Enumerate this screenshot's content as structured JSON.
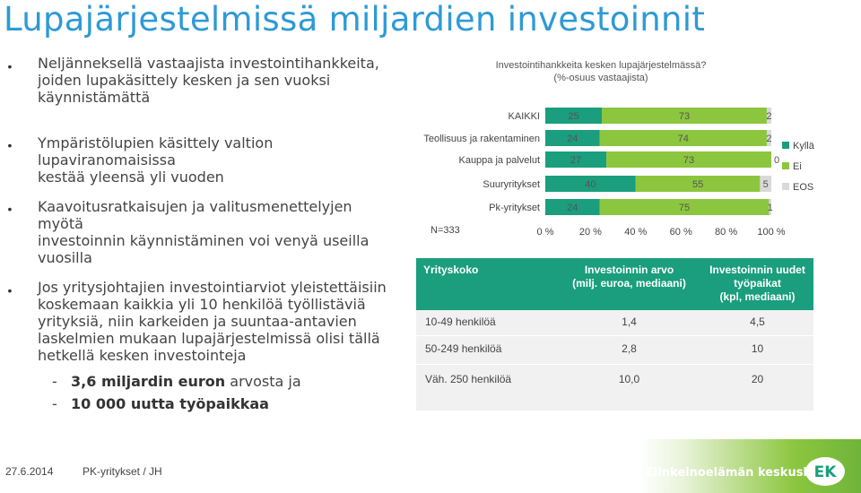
{
  "title": "Lupajärjestelmissä miljardien investoinnit",
  "bullets": [
    {
      "lines": [
        "Neljänneksellä vastaajista investointihankkeita,",
        "joiden lupakäsittely kesken ja sen vuoksi",
        "käynnistämättä"
      ]
    },
    {
      "lines": [
        "Ympäristölupien käsittely valtion lupaviranomaisissa",
        "kestää yleensä yli vuoden"
      ]
    },
    {
      "lines": [
        "Kaavoitusratkaisujen ja valitusmenettelyjen myötä",
        "investoinnin käynnistäminen voi venyä useilla",
        "vuosilla"
      ]
    },
    {
      "lines": [
        "Jos yritysjohtajien investointiarviot yleistettäisiin",
        "koskemaan kaikkia yli 10 henkilöä työllistäviä",
        "yrityksiä, niin karkeiden ja suuntaa-antavien",
        "laskelmien mukaan lupajärjestelmissä olisi tällä",
        "hetkellä kesken investointeja"
      ]
    }
  ],
  "subbullets": [
    {
      "dash": "-",
      "bold": "3,6 miljardin euron",
      "rest": " arvosta ja"
    },
    {
      "dash": "-",
      "bold": "10 000 uutta työpaikkaa",
      "rest": ""
    }
  ],
  "chart_data": {
    "type": "bar",
    "orientation": "horizontal",
    "stacked": true,
    "title": "Investointihankkeita kesken lupajärjestelmässä?",
    "subtitle": "(%-osuus vastaajista)",
    "categories": [
      "KAIKKI",
      "Teollisuus ja rakentaminen",
      "Kauppa ja palvelut",
      "Suuryritykset",
      "Pk-yritykset"
    ],
    "series": [
      {
        "name": "Kyllä",
        "color": "#1a9e7d",
        "values": [
          25,
          24,
          27,
          40,
          24
        ]
      },
      {
        "name": "Ei",
        "color": "#8cc63f",
        "values": [
          73,
          74,
          73,
          55,
          75
        ]
      },
      {
        "name": "EOS",
        "color": "#d9d9d9",
        "values": [
          2,
          2,
          0,
          5,
          1
        ]
      }
    ],
    "xlim": [
      0,
      100
    ],
    "x_ticks": [
      "0 %",
      "20 %",
      "40 %",
      "60 %",
      "80 %",
      "100 %"
    ],
    "note": "N=333",
    "legend_position": "right"
  },
  "table": {
    "headers": [
      {
        "lines": [
          "Yrityskoko"
        ]
      },
      {
        "lines": [
          "Investoinnin arvo",
          "(milj. euroa, mediaani)"
        ]
      },
      {
        "lines": [
          "Investoinnin  uudet",
          "työpaikat",
          "(kpl, mediaani)"
        ]
      }
    ],
    "rows": [
      [
        "10-49 henkilöä",
        "1,4",
        "4,5"
      ],
      [
        "50-249 henkilöä",
        "2,8",
        "10"
      ],
      [
        "Väh. 250 henkilöä",
        "10,0",
        "20"
      ]
    ]
  },
  "footer": {
    "date": "27.6.2014",
    "source": "PK-yritykset / JH",
    "logo_text": "Elinkeinoelämän keskusliitto"
  },
  "colors": {
    "title": "#2e9ad6",
    "kylla": "#1a9e7d",
    "ei": "#8cc63f",
    "eos": "#d9d9d9",
    "table_header": "#1a9e7d"
  }
}
